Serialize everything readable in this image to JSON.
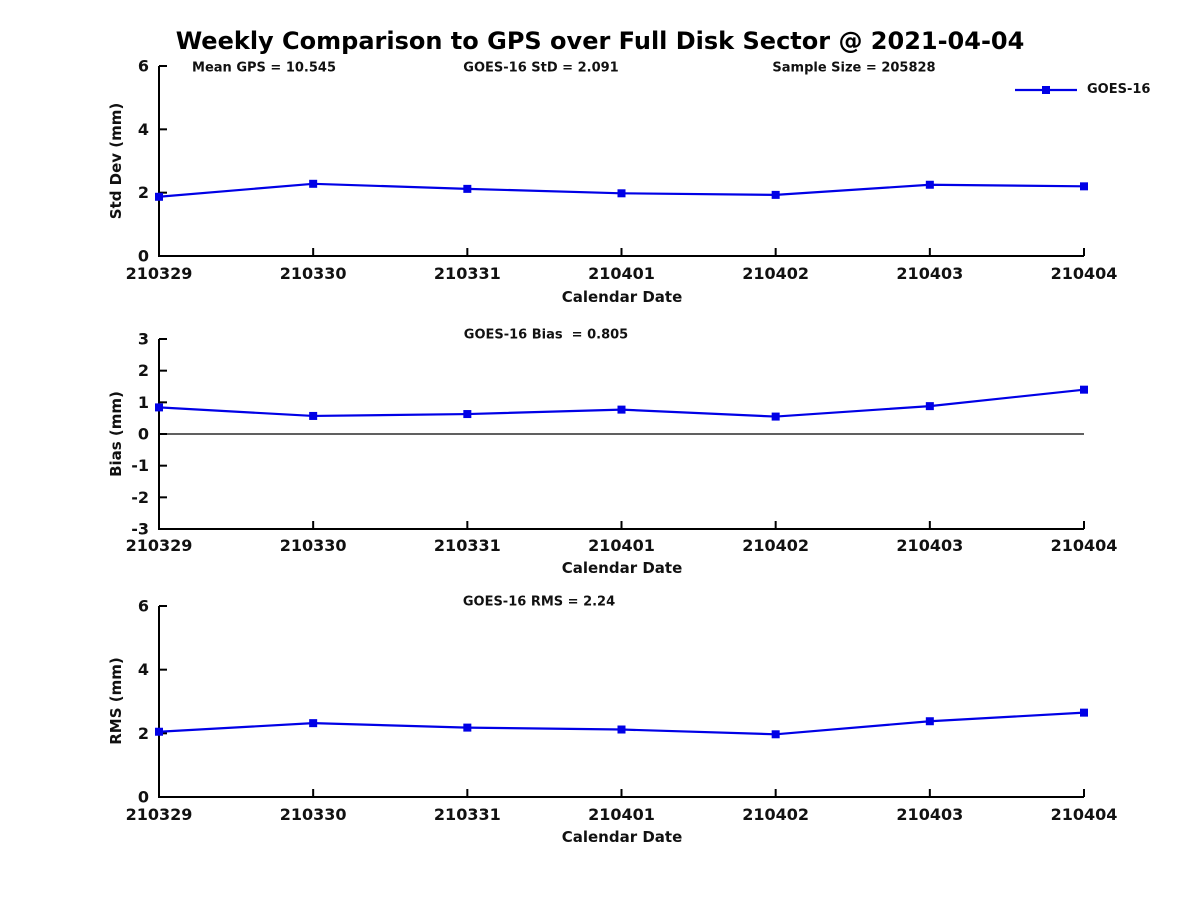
{
  "chart": {
    "title": "Weekly Comparison to GPS over Full Disk Sector @ 2021-04-04",
    "legend": {
      "label": "GOES-16"
    },
    "colors": {
      "series": "#0000e6",
      "text": "#111111",
      "axis": "#000000",
      "background": "#ffffff"
    }
  },
  "chart_data": [
    {
      "type": "line",
      "name": "std-dev-panel",
      "ylabel": "Std Dev (mm)",
      "xlabel": "Calendar Date",
      "ylim": [
        0,
        6
      ],
      "yticks": [
        0,
        2,
        4,
        6
      ],
      "categories": [
        "210329",
        "210330",
        "210331",
        "210401",
        "210402",
        "210403",
        "210404"
      ],
      "series": [
        {
          "name": "GOES-16",
          "values": [
            1.87,
            2.28,
            2.12,
            1.98,
            1.93,
            2.25,
            2.2
          ]
        }
      ],
      "annotations": [
        "Mean GPS = 10.545",
        "GOES-16 StD = 2.091",
        "Sample Size = 205828"
      ],
      "legend_position": "top-right",
      "grid": false,
      "zero_line": false
    },
    {
      "type": "line",
      "name": "bias-panel",
      "ylabel": "Bias (mm)",
      "xlabel": "Calendar Date",
      "ylim": [
        -3,
        3
      ],
      "yticks": [
        -3,
        -2,
        -1,
        0,
        1,
        2,
        3
      ],
      "categories": [
        "210329",
        "210330",
        "210331",
        "210401",
        "210402",
        "210403",
        "210404"
      ],
      "series": [
        {
          "name": "GOES-16",
          "values": [
            0.84,
            0.57,
            0.63,
            0.77,
            0.55,
            0.88,
            1.4
          ]
        }
      ],
      "annotations": [
        "GOES-16 Bias  = 0.805"
      ],
      "legend_position": "none",
      "grid": false,
      "zero_line": true
    },
    {
      "type": "line",
      "name": "rms-panel",
      "ylabel": "RMS (mm)",
      "xlabel": "Calendar Date",
      "ylim": [
        0,
        6
      ],
      "yticks": [
        0,
        2,
        4,
        6
      ],
      "categories": [
        "210329",
        "210330",
        "210331",
        "210401",
        "210402",
        "210403",
        "210404"
      ],
      "series": [
        {
          "name": "GOES-16",
          "values": [
            2.05,
            2.32,
            2.18,
            2.12,
            1.97,
            2.38,
            2.65
          ]
        }
      ],
      "annotations": [
        "GOES-16 RMS = 2.24"
      ],
      "legend_position": "none",
      "grid": false,
      "zero_line": false
    }
  ]
}
